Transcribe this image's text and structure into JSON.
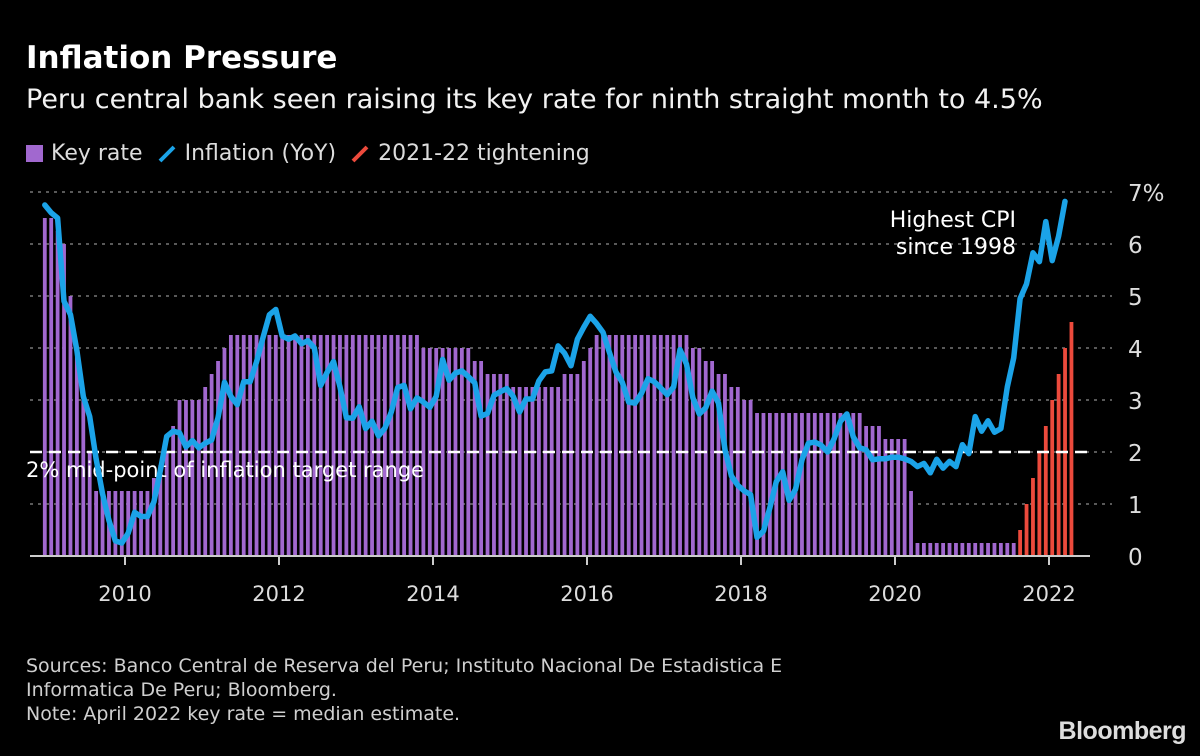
{
  "title": "Inflation Pressure",
  "subtitle": "Peru central bank seen raising its key rate for ninth straight month to 4.5%",
  "legend": [
    {
      "label": "Key rate",
      "color": "#a168cf",
      "shape": "square"
    },
    {
      "label": "Inflation (YoY)",
      "color": "#1ba3e8",
      "shape": "line"
    },
    {
      "label": "2021-22 tightening",
      "color": "#ec4a3c",
      "shape": "line"
    }
  ],
  "footer": {
    "sources_line1": "Sources: Banco Central de Reserva del Peru; Instituto Nacional De Estadistica E",
    "sources_line2": "Informatica De Peru; Bloomberg.",
    "note": "Note: April 2022 key rate = median estimate."
  },
  "logo": "Bloomberg",
  "chart_data": {
    "type": "bar+line",
    "x_start_month": "2008-12",
    "x_ticks": [
      "2010",
      "2012",
      "2014",
      "2016",
      "2018",
      "2020",
      "2022"
    ],
    "ylim": [
      0,
      7
    ],
    "y_ticks": [
      "0",
      "1",
      "2",
      "3",
      "4",
      "5",
      "6",
      "7%"
    ],
    "grid": true,
    "series": [
      {
        "name": "Key rate",
        "type": "bar",
        "color": "#a168cf",
        "tightening_color": "#ec4a3c",
        "tightening_from": "2021-08",
        "values": [
          6.5,
          6.5,
          6.25,
          6.0,
          5.0,
          4.0,
          3.0,
          2.0,
          1.25,
          1.25,
          1.25,
          1.25,
          1.25,
          1.25,
          1.25,
          1.25,
          1.25,
          1.5,
          1.75,
          2.0,
          2.5,
          3.0,
          3.0,
          3.0,
          3.0,
          3.25,
          3.5,
          3.75,
          4.0,
          4.25,
          4.25,
          4.25,
          4.25,
          4.25,
          4.25,
          4.25,
          4.25,
          4.25,
          4.25,
          4.25,
          4.25,
          4.25,
          4.25,
          4.25,
          4.25,
          4.25,
          4.25,
          4.25,
          4.25,
          4.25,
          4.25,
          4.25,
          4.25,
          4.25,
          4.25,
          4.25,
          4.25,
          4.25,
          4.25,
          4.0,
          4.0,
          4.0,
          4.0,
          4.0,
          4.0,
          4.0,
          4.0,
          3.75,
          3.75,
          3.5,
          3.5,
          3.5,
          3.5,
          3.25,
          3.25,
          3.25,
          3.25,
          3.25,
          3.25,
          3.25,
          3.25,
          3.5,
          3.5,
          3.5,
          3.75,
          4.0,
          4.25,
          4.25,
          4.25,
          4.25,
          4.25,
          4.25,
          4.25,
          4.25,
          4.25,
          4.25,
          4.25,
          4.25,
          4.25,
          4.25,
          4.25,
          4.0,
          4.0,
          3.75,
          3.75,
          3.5,
          3.5,
          3.25,
          3.25,
          3.0,
          3.0,
          2.75,
          2.75,
          2.75,
          2.75,
          2.75,
          2.75,
          2.75,
          2.75,
          2.75,
          2.75,
          2.75,
          2.75,
          2.75,
          2.75,
          2.75,
          2.75,
          2.75,
          2.5,
          2.5,
          2.5,
          2.25,
          2.25,
          2.25,
          2.25,
          1.25,
          0.25,
          0.25,
          0.25,
          0.25,
          0.25,
          0.25,
          0.25,
          0.25,
          0.25,
          0.25,
          0.25,
          0.25,
          0.25,
          0.25,
          0.25,
          0.25,
          0.5,
          1.0,
          1.5,
          2.0,
          2.5,
          3.0,
          3.5,
          4.0,
          4.5
        ]
      },
      {
        "name": "Inflation (YoY)",
        "type": "line",
        "color": "#1ba3e8",
        "values": [
          6.75,
          6.6,
          6.5,
          4.9,
          4.64,
          3.95,
          3.07,
          2.68,
          1.87,
          1.2,
          0.68,
          0.29,
          0.25,
          0.44,
          0.84,
          0.76,
          0.76,
          1.04,
          1.64,
          2.3,
          2.4,
          2.37,
          2.1,
          2.22,
          2.08,
          2.17,
          2.23,
          2.66,
          3.34,
          3.07,
          2.91,
          3.35,
          3.35,
          3.73,
          4.2,
          4.64,
          4.74,
          4.23,
          4.17,
          4.23,
          4.08,
          4.14,
          4.0,
          3.28,
          3.53,
          3.74,
          3.25,
          2.66,
          2.65,
          2.87,
          2.45,
          2.59,
          2.31,
          2.46,
          2.77,
          3.24,
          3.28,
          2.83,
          3.04,
          2.96,
          2.86,
          3.07,
          3.78,
          3.38,
          3.52,
          3.56,
          3.45,
          3.33,
          2.69,
          2.74,
          3.09,
          3.16,
          3.22,
          3.07,
          2.77,
          3.02,
          3.02,
          3.37,
          3.54,
          3.56,
          4.04,
          3.9,
          3.66,
          4.17,
          4.4,
          4.61,
          4.47,
          4.3,
          3.91,
          3.54,
          3.34,
          2.96,
          2.94,
          3.13,
          3.41,
          3.35,
          3.23,
          3.1,
          3.25,
          3.97,
          3.69,
          3.04,
          2.73,
          2.85,
          3.17,
          2.94,
          2.04,
          1.54,
          1.36,
          1.25,
          1.18,
          0.36,
          0.48,
          0.93,
          1.43,
          1.62,
          1.07,
          1.28,
          1.85,
          2.17,
          2.19,
          2.13,
          2.0,
          2.25,
          2.59,
          2.73,
          2.29,
          2.08,
          2.04,
          1.85,
          1.87,
          1.87,
          1.9,
          1.9,
          1.87,
          1.82,
          1.72,
          1.78,
          1.6,
          1.86,
          1.69,
          1.82,
          1.72,
          2.14,
          1.97,
          2.68,
          2.4,
          2.6,
          2.38,
          2.45,
          3.25,
          3.81,
          4.95,
          5.23,
          5.83,
          5.66,
          6.43,
          5.68,
          6.15,
          6.82
        ]
      }
    ],
    "reference_line": {
      "value": 2,
      "label": "2% mid-point of inflation target range"
    },
    "annotation": {
      "line1": "Highest CPI",
      "line2": "since 1998"
    }
  }
}
